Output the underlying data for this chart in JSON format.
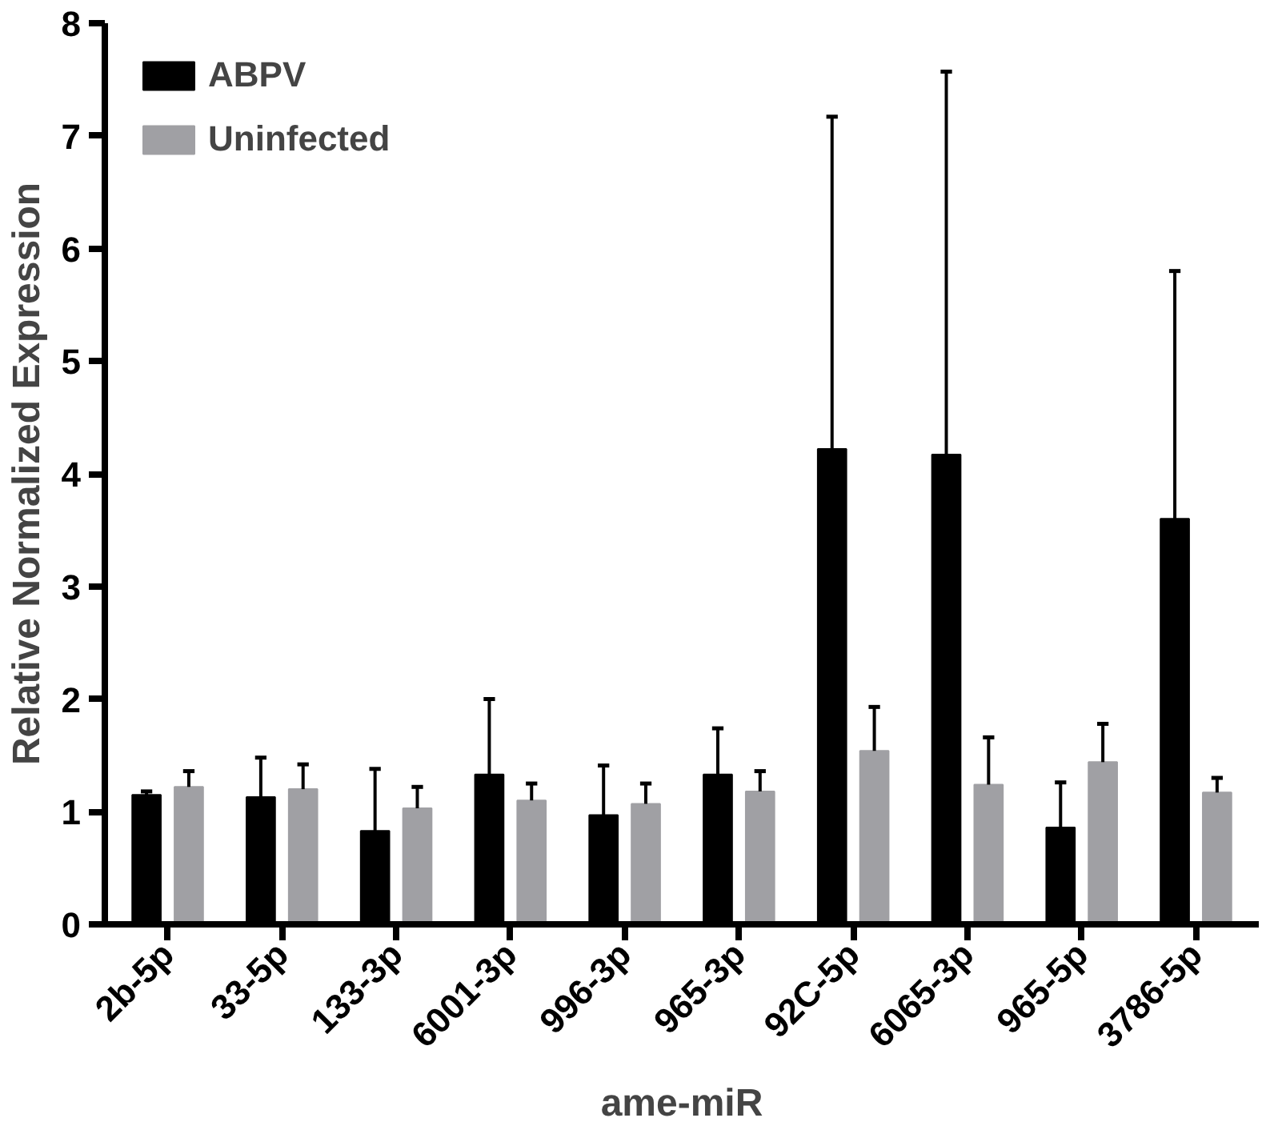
{
  "chart_data": {
    "type": "bar",
    "xlabel": "ame-miR",
    "ylabel": "Relative Normalized Expression",
    "categories": [
      "2b-5p",
      "33-5p",
      "133-3p",
      "6001-3p",
      "996-3p",
      "965-3p",
      "92C-5p",
      "6065-3p",
      "965-5p",
      "3786-5p"
    ],
    "series": [
      {
        "name": "ABPV",
        "color": "#000000",
        "values": [
          1.15,
          1.13,
          0.83,
          1.33,
          0.97,
          1.33,
          4.22,
          4.17,
          0.86,
          3.6
        ],
        "errors": [
          [
            1.15,
            1.18
          ],
          [
            1.13,
            1.48
          ],
          [
            0.83,
            1.38
          ],
          [
            1.33,
            2.0
          ],
          [
            0.97,
            1.41
          ],
          [
            1.33,
            1.74
          ],
          [
            4.22,
            7.17
          ],
          [
            4.17,
            7.57
          ],
          [
            0.86,
            1.26
          ],
          [
            3.6,
            5.8
          ]
        ]
      },
      {
        "name": "Uninfected",
        "color": "#a0a0a4",
        "values": [
          1.22,
          1.2,
          1.03,
          1.1,
          1.07,
          1.18,
          1.54,
          1.24,
          1.44,
          1.17
        ],
        "errors": [
          [
            1.22,
            1.36
          ],
          [
            1.2,
            1.42
          ],
          [
            1.03,
            1.22
          ],
          [
            1.1,
            1.25
          ],
          [
            1.07,
            1.25
          ],
          [
            1.18,
            1.36
          ],
          [
            1.54,
            1.93
          ],
          [
            1.24,
            1.66
          ],
          [
            1.44,
            1.78
          ],
          [
            1.17,
            1.3
          ]
        ]
      }
    ],
    "ylim": [
      0,
      8
    ],
    "yticks": [
      0,
      1,
      2,
      3,
      4,
      5,
      6,
      7,
      8
    ],
    "grid": false,
    "legend": "top left"
  }
}
